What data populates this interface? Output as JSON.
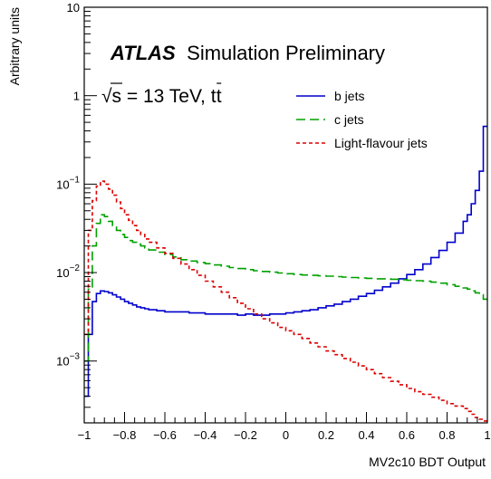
{
  "chart_data": {
    "type": "line",
    "style": "step-histogram",
    "x": {
      "label": "MV2c10 BDT Output",
      "range": [
        -1,
        1
      ],
      "ticks": [
        -1,
        -0.8,
        -0.6,
        -0.4,
        -0.2,
        0,
        0.2,
        0.4,
        0.6,
        0.8,
        1
      ],
      "tick_labels": [
        "−1",
        "−0.8",
        "−0.6",
        "−0.4",
        "−0.2",
        "0",
        "0.2",
        "0.4",
        "0.6",
        "0.8",
        "1"
      ]
    },
    "y": {
      "label": "Arbitrary units",
      "scale": "log",
      "range": [
        0.0002,
        10
      ],
      "decades": [
        {
          "value": 0.001,
          "base": "10",
          "exp": "−3"
        },
        {
          "value": 0.01,
          "base": "10",
          "exp": "−2"
        },
        {
          "value": 0.1,
          "base": "10",
          "exp": "−1"
        },
        {
          "value": 1,
          "base": "1",
          "exp": ""
        },
        {
          "value": 10,
          "base": "10",
          "exp": ""
        }
      ]
    },
    "annotations": {
      "experiment": "ATLAS",
      "status": "Simulation Preliminary",
      "energy_prefix": "√s = 13 TeV, t",
      "energy_suffix": "t"
    },
    "legend_position": "top-right",
    "series": [
      {
        "name": "b jets",
        "color": "#0000cc",
        "dash": "solid",
        "points": [
          [
            -1.0,
            0.0004
          ],
          [
            -0.98,
            0.002
          ],
          [
            -0.96,
            0.0047
          ],
          [
            -0.94,
            0.0058
          ],
          [
            -0.92,
            0.0062
          ],
          [
            -0.9,
            0.0061
          ],
          [
            -0.88,
            0.0059
          ],
          [
            -0.86,
            0.0056
          ],
          [
            -0.84,
            0.0053
          ],
          [
            -0.82,
            0.005
          ],
          [
            -0.8,
            0.0047
          ],
          [
            -0.78,
            0.0045
          ],
          [
            -0.76,
            0.0043
          ],
          [
            -0.74,
            0.0041
          ],
          [
            -0.72,
            0.004
          ],
          [
            -0.7,
            0.0039
          ],
          [
            -0.68,
            0.0038
          ],
          [
            -0.64,
            0.0037
          ],
          [
            -0.6,
            0.0036
          ],
          [
            -0.56,
            0.0036
          ],
          [
            -0.52,
            0.0036
          ],
          [
            -0.48,
            0.0035
          ],
          [
            -0.44,
            0.0035
          ],
          [
            -0.4,
            0.0034
          ],
          [
            -0.36,
            0.0034
          ],
          [
            -0.32,
            0.0034
          ],
          [
            -0.28,
            0.0034
          ],
          [
            -0.24,
            0.0033
          ],
          [
            -0.2,
            0.0034
          ],
          [
            -0.16,
            0.0033
          ],
          [
            -0.12,
            0.0033
          ],
          [
            -0.08,
            0.0034
          ],
          [
            -0.04,
            0.0034
          ],
          [
            0.0,
            0.0035
          ],
          [
            0.04,
            0.0036
          ],
          [
            0.08,
            0.0037
          ],
          [
            0.12,
            0.0038
          ],
          [
            0.16,
            0.004
          ],
          [
            0.2,
            0.0042
          ],
          [
            0.24,
            0.0044
          ],
          [
            0.28,
            0.0047
          ],
          [
            0.32,
            0.005
          ],
          [
            0.36,
            0.0054
          ],
          [
            0.4,
            0.0058
          ],
          [
            0.44,
            0.0063
          ],
          [
            0.48,
            0.0069
          ],
          [
            0.52,
            0.0076
          ],
          [
            0.56,
            0.0085
          ],
          [
            0.6,
            0.0095
          ],
          [
            0.64,
            0.0108
          ],
          [
            0.68,
            0.0125
          ],
          [
            0.72,
            0.0148
          ],
          [
            0.76,
            0.0178
          ],
          [
            0.8,
            0.022
          ],
          [
            0.84,
            0.028
          ],
          [
            0.88,
            0.038
          ],
          [
            0.9,
            0.045
          ],
          [
            0.92,
            0.06
          ],
          [
            0.94,
            0.085
          ],
          [
            0.96,
            0.14
          ],
          [
            0.98,
            0.45
          ]
        ]
      },
      {
        "name": "c jets",
        "color": "#00a000",
        "dash": "long-dash",
        "points": [
          [
            -1.0,
            0.001
          ],
          [
            -0.98,
            0.0065
          ],
          [
            -0.96,
            0.02
          ],
          [
            -0.94,
            0.036
          ],
          [
            -0.92,
            0.045
          ],
          [
            -0.9,
            0.043
          ],
          [
            -0.88,
            0.038
          ],
          [
            -0.86,
            0.034
          ],
          [
            -0.84,
            0.03
          ],
          [
            -0.82,
            0.027
          ],
          [
            -0.8,
            0.025
          ],
          [
            -0.78,
            0.023
          ],
          [
            -0.76,
            0.022
          ],
          [
            -0.74,
            0.021
          ],
          [
            -0.72,
            0.02
          ],
          [
            -0.7,
            0.019
          ],
          [
            -0.68,
            0.018
          ],
          [
            -0.64,
            0.017
          ],
          [
            -0.6,
            0.016
          ],
          [
            -0.56,
            0.015
          ],
          [
            -0.52,
            0.014
          ],
          [
            -0.48,
            0.0135
          ],
          [
            -0.44,
            0.013
          ],
          [
            -0.4,
            0.0126
          ],
          [
            -0.36,
            0.0122
          ],
          [
            -0.32,
            0.0118
          ],
          [
            -0.28,
            0.0114
          ],
          [
            -0.24,
            0.0111
          ],
          [
            -0.2,
            0.0108
          ],
          [
            -0.16,
            0.0105
          ],
          [
            -0.12,
            0.0103
          ],
          [
            -0.08,
            0.0101
          ],
          [
            -0.04,
            0.0099
          ],
          [
            0.0,
            0.0097
          ],
          [
            0.04,
            0.0095
          ],
          [
            0.08,
            0.0094
          ],
          [
            0.12,
            0.0093
          ],
          [
            0.16,
            0.0092
          ],
          [
            0.2,
            0.0091
          ],
          [
            0.24,
            0.009
          ],
          [
            0.28,
            0.0089
          ],
          [
            0.32,
            0.0088
          ],
          [
            0.36,
            0.0087
          ],
          [
            0.4,
            0.0086
          ],
          [
            0.44,
            0.0085
          ],
          [
            0.48,
            0.0085
          ],
          [
            0.52,
            0.0084
          ],
          [
            0.56,
            0.0083
          ],
          [
            0.6,
            0.0082
          ],
          [
            0.64,
            0.0081
          ],
          [
            0.68,
            0.008
          ],
          [
            0.72,
            0.0078
          ],
          [
            0.76,
            0.0076
          ],
          [
            0.8,
            0.0073
          ],
          [
            0.84,
            0.007
          ],
          [
            0.88,
            0.0067
          ],
          [
            0.9,
            0.0065
          ],
          [
            0.92,
            0.0062
          ],
          [
            0.94,
            0.0059
          ],
          [
            0.96,
            0.0056
          ],
          [
            0.98,
            0.005
          ]
        ]
      },
      {
        "name": "Light-flavour jets",
        "color": "#dd0000",
        "dash": "short-dash",
        "points": [
          [
            -1.0,
            0.002
          ],
          [
            -0.98,
            0.03
          ],
          [
            -0.96,
            0.065
          ],
          [
            -0.94,
            0.095
          ],
          [
            -0.92,
            0.108
          ],
          [
            -0.9,
            0.1
          ],
          [
            -0.88,
            0.088
          ],
          [
            -0.86,
            0.075
          ],
          [
            -0.84,
            0.063
          ],
          [
            -0.82,
            0.053
          ],
          [
            -0.8,
            0.045
          ],
          [
            -0.78,
            0.039
          ],
          [
            -0.76,
            0.034
          ],
          [
            -0.74,
            0.03
          ],
          [
            -0.72,
            0.027
          ],
          [
            -0.7,
            0.024
          ],
          [
            -0.68,
            0.022
          ],
          [
            -0.64,
            0.019
          ],
          [
            -0.6,
            0.0165
          ],
          [
            -0.56,
            0.0145
          ],
          [
            -0.52,
            0.0125
          ],
          [
            -0.48,
            0.0108
          ],
          [
            -0.44,
            0.0093
          ],
          [
            -0.4,
            0.008
          ],
          [
            -0.36,
            0.0069
          ],
          [
            -0.32,
            0.006
          ],
          [
            -0.28,
            0.0052
          ],
          [
            -0.24,
            0.0045
          ],
          [
            -0.2,
            0.0039
          ],
          [
            -0.16,
            0.0034
          ],
          [
            -0.12,
            0.003
          ],
          [
            -0.08,
            0.0027
          ],
          [
            -0.04,
            0.0024
          ],
          [
            0.0,
            0.0022
          ],
          [
            0.04,
            0.002
          ],
          [
            0.08,
            0.0018
          ],
          [
            0.12,
            0.0016
          ],
          [
            0.16,
            0.00145
          ],
          [
            0.2,
            0.0013
          ],
          [
            0.24,
            0.00118
          ],
          [
            0.28,
            0.00107
          ],
          [
            0.32,
            0.00097
          ],
          [
            0.36,
            0.00088
          ],
          [
            0.4,
            0.0008
          ],
          [
            0.44,
            0.00072
          ],
          [
            0.48,
            0.00065
          ],
          [
            0.52,
            0.00059
          ],
          [
            0.56,
            0.00054
          ],
          [
            0.6,
            0.00049
          ],
          [
            0.64,
            0.00045
          ],
          [
            0.68,
            0.00042
          ],
          [
            0.72,
            0.00039
          ],
          [
            0.76,
            0.00036
          ],
          [
            0.8,
            0.00033
          ],
          [
            0.84,
            0.00031
          ],
          [
            0.88,
            0.00029
          ],
          [
            0.9,
            0.00027
          ],
          [
            0.92,
            0.00025
          ],
          [
            0.94,
            0.00023
          ],
          [
            0.96,
            0.00022
          ],
          [
            0.98,
            0.00021
          ]
        ]
      }
    ]
  }
}
